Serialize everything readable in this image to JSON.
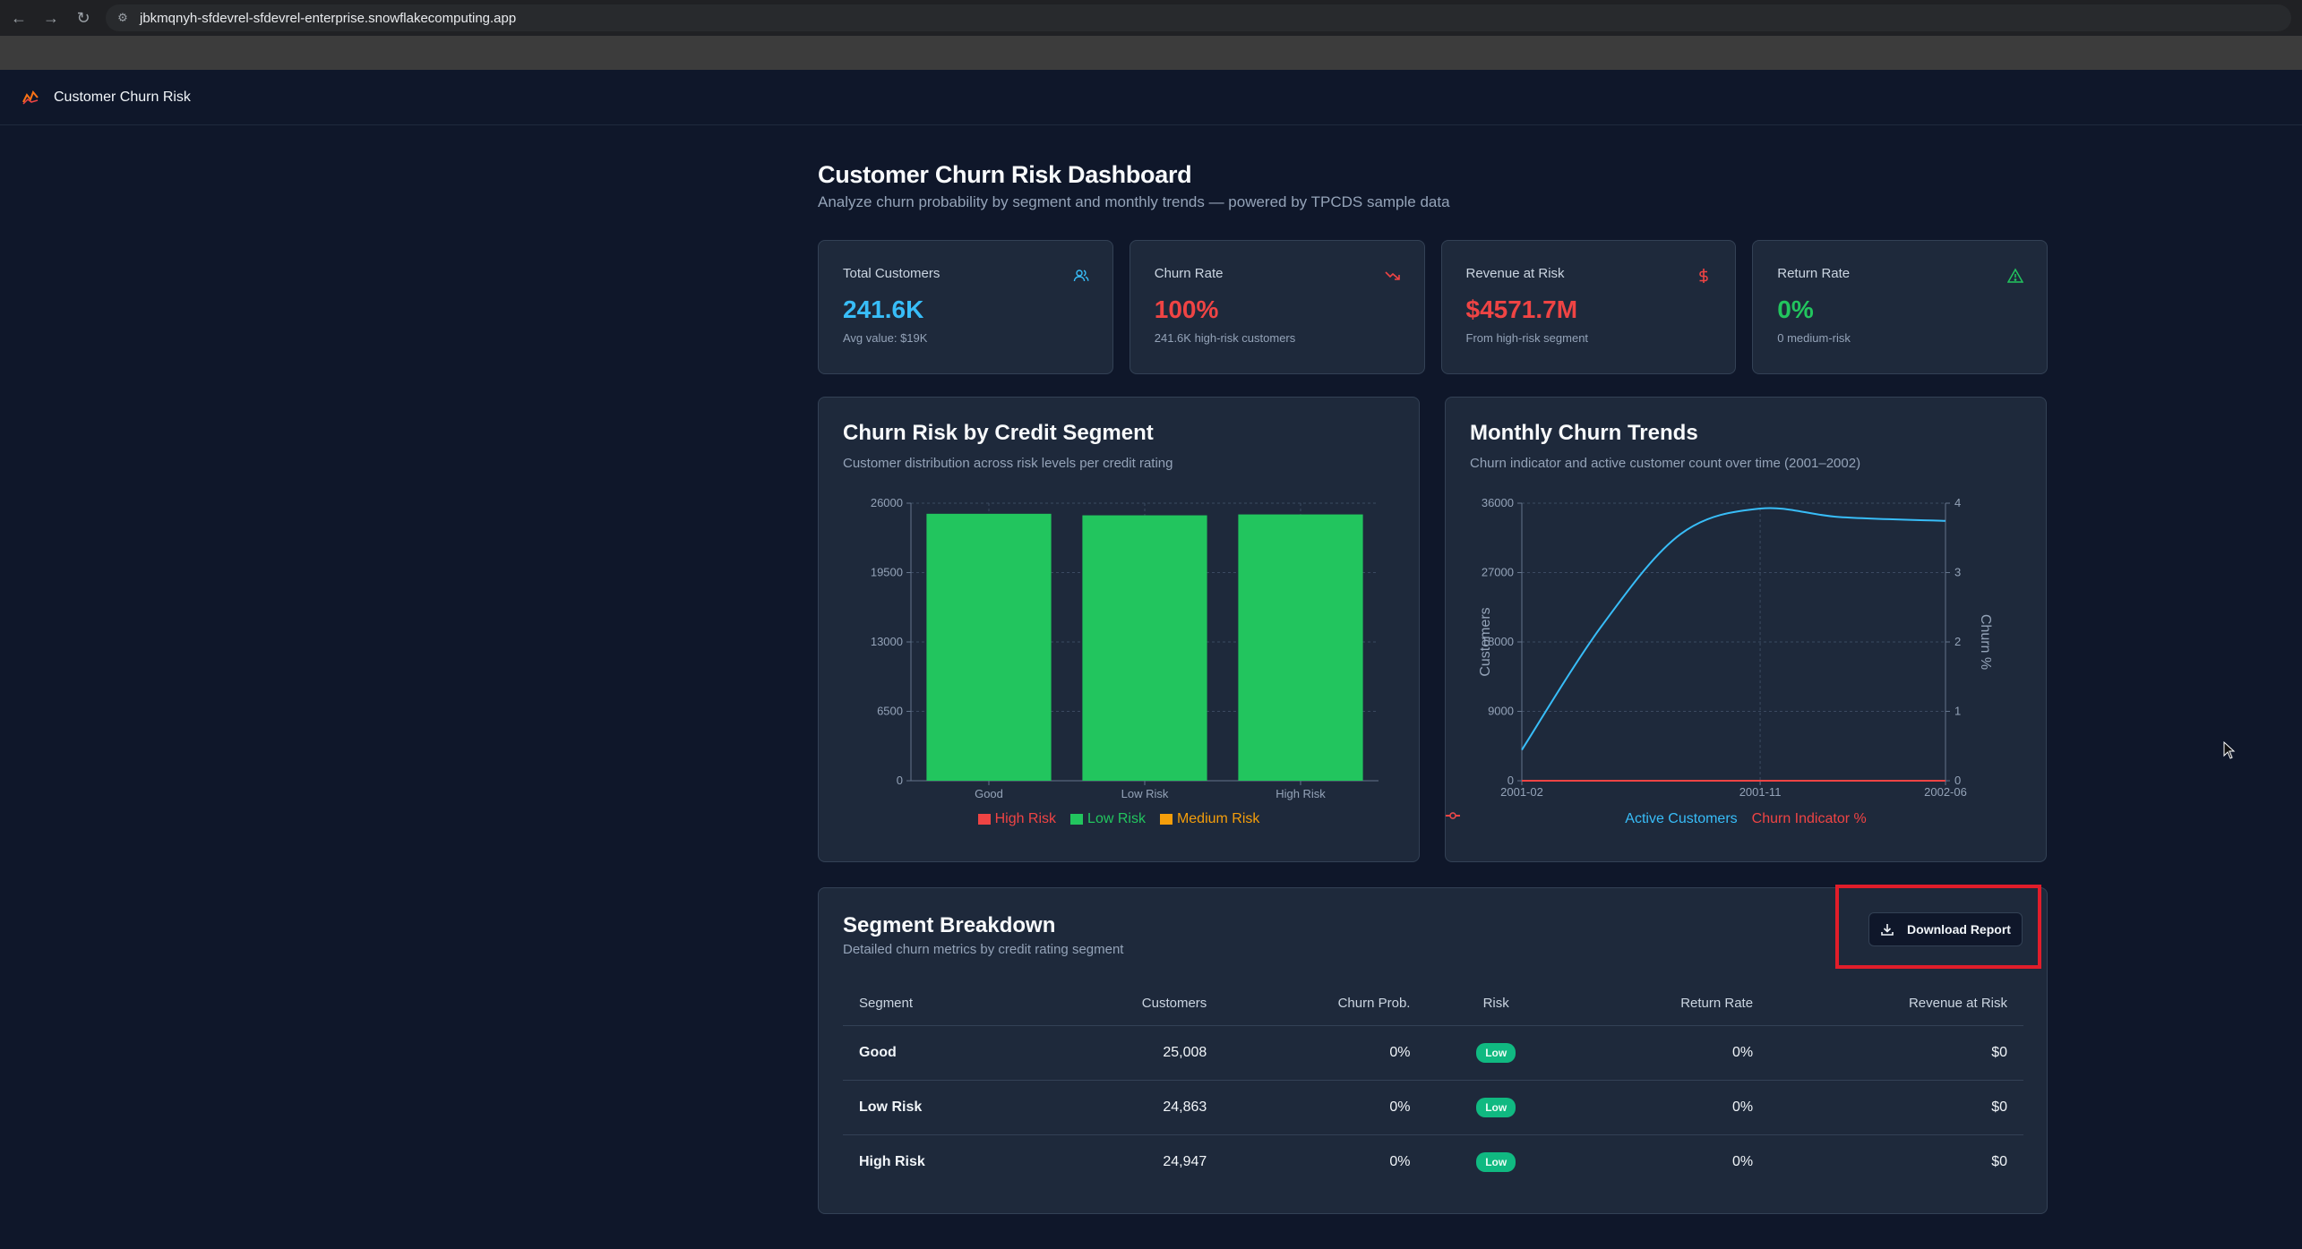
{
  "browser": {
    "url": "jbkmqnyh-sfdevrel-sfdevrel-enterprise.snowflakecomputing.app"
  },
  "app": {
    "title": "Customer Churn Risk"
  },
  "page": {
    "title": "Customer Churn Risk Dashboard",
    "subtitle": "Analyze churn probability by segment and monthly trends — powered by TPCDS sample data"
  },
  "kpis": [
    {
      "label": "Total Customers",
      "value": "241.6K",
      "sub": "Avg value: $19K",
      "icon": "users-icon",
      "color": "#38bdf8"
    },
    {
      "label": "Churn Rate",
      "value": "100%",
      "sub": "241.6K high-risk customers",
      "icon": "trending-down-icon",
      "color": "#ef4444"
    },
    {
      "label": "Revenue at Risk",
      "value": "$4571.7M",
      "sub": "From high-risk segment",
      "icon": "dollar-icon",
      "color": "#ef4444"
    },
    {
      "label": "Return Rate",
      "value": "0%",
      "sub": "0 medium-risk",
      "icon": "alert-triangle-icon",
      "color": "#22c55e"
    }
  ],
  "chart_data": [
    {
      "type": "bar",
      "title": "Churn Risk by Credit Segment",
      "subtitle": "Customer distribution across risk levels per credit rating",
      "categories": [
        "Good",
        "Low Risk",
        "High Risk"
      ],
      "series": [
        {
          "name": "High Risk",
          "color": "#ef4444",
          "values": [
            0,
            0,
            0
          ]
        },
        {
          "name": "Low Risk",
          "color": "#22c55e",
          "values": [
            25008,
            24863,
            24947
          ]
        },
        {
          "name": "Medium Risk",
          "color": "#f59e0b",
          "values": [
            0,
            0,
            0
          ]
        }
      ],
      "y_ticks": [
        "0",
        "6500",
        "13000",
        "19500",
        "26000"
      ],
      "ylim": [
        0,
        26000
      ],
      "legend": "bottom-center",
      "grid": true
    },
    {
      "type": "line",
      "title": "Monthly Churn Trends",
      "subtitle": "Churn indicator and active customer count over time (2001–2002)",
      "x_ticks": [
        "2001-02",
        "2001-11",
        "2002-06"
      ],
      "series": [
        {
          "name": "Active Customers",
          "color": "#38bdf8",
          "axis": "left",
          "x": [
            "2001-02",
            "2001-05",
            "2001-08",
            "2001-11",
            "2002-02",
            "2002-06"
          ],
          "values": [
            4000,
            20000,
            32000,
            35300,
            34200,
            33700
          ]
        },
        {
          "name": "Churn Indicator %",
          "color": "#ef4444",
          "axis": "right",
          "x": [
            "2001-02",
            "2001-05",
            "2001-08",
            "2001-11",
            "2002-02",
            "2002-06"
          ],
          "values": [
            0,
            0,
            0,
            0,
            0,
            0
          ]
        }
      ],
      "left_axis": {
        "label": "Customers",
        "ticks": [
          "0",
          "9000",
          "18000",
          "27000",
          "36000"
        ],
        "range": [
          0,
          36000
        ]
      },
      "right_axis": {
        "label": "Churn %",
        "ticks": [
          "0",
          "1",
          "2",
          "3",
          "4"
        ],
        "range": [
          0,
          4
        ]
      },
      "legend": "bottom-center",
      "grid": true
    }
  ],
  "table": {
    "title": "Segment Breakdown",
    "subtitle": "Detailed churn metrics by credit rating segment",
    "download_label": "Download Report",
    "columns": [
      "Segment",
      "Customers",
      "Churn Prob.",
      "Risk",
      "Return Rate",
      "Revenue at Risk"
    ],
    "rows": [
      {
        "segment": "Good",
        "customers": "25,008",
        "churn": "0%",
        "risk": "Low",
        "return_rate": "0%",
        "revenue": "$0"
      },
      {
        "segment": "Low Risk",
        "customers": "24,863",
        "churn": "0%",
        "risk": "Low",
        "return_rate": "0%",
        "revenue": "$0"
      },
      {
        "segment": "High Risk",
        "customers": "24,947",
        "churn": "0%",
        "risk": "Low",
        "return_rate": "0%",
        "revenue": "$0"
      }
    ]
  }
}
